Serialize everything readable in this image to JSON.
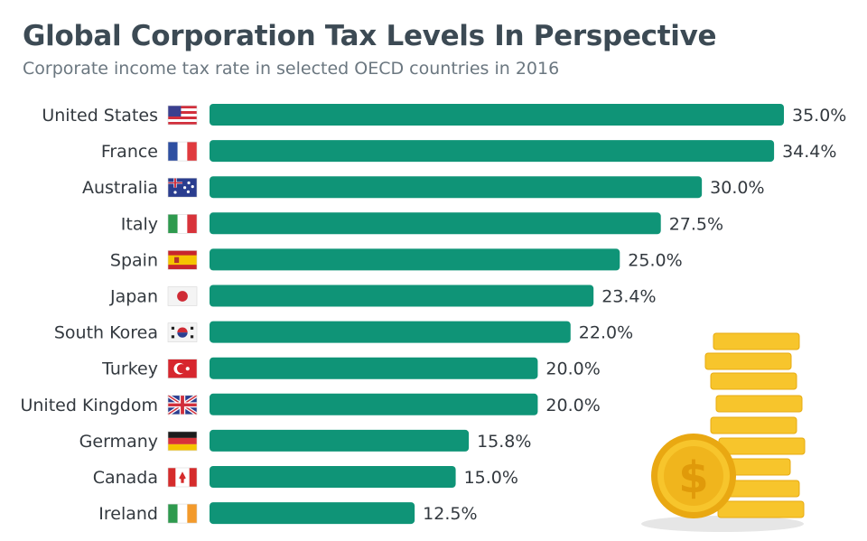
{
  "title": "Global Corporation Tax Levels In Perspective",
  "subtitle": "Corporate income tax rate in selected OECD countries in 2016",
  "chart_data": {
    "type": "bar",
    "orientation": "horizontal",
    "categories": [
      "United States",
      "France",
      "Australia",
      "Italy",
      "Spain",
      "Japan",
      "South Korea",
      "Turkey",
      "United Kingdom",
      "Germany",
      "Canada",
      "Ireland"
    ],
    "values": [
      35.0,
      34.4,
      30.0,
      27.5,
      25.0,
      23.4,
      22.0,
      20.0,
      20.0,
      15.8,
      15.0,
      12.5
    ],
    "labels": [
      "35.0%",
      "34.4%",
      "30.0%",
      "27.5%",
      "25.0%",
      "23.4%",
      "22.0%",
      "20.0%",
      "20.0%",
      "15.8%",
      "15.0%",
      "12.5%"
    ],
    "flags": [
      "us-flag-icon",
      "fr-flag-icon",
      "au-flag-icon",
      "it-flag-icon",
      "es-flag-icon",
      "jp-flag-icon",
      "kr-flag-icon",
      "tr-flag-icon",
      "gb-flag-icon",
      "de-flag-icon",
      "ca-flag-icon",
      "ie-flag-icon"
    ],
    "xlim": [
      0,
      35
    ],
    "grid": false,
    "legend": "none",
    "bar_color": "#0f9477"
  }
}
